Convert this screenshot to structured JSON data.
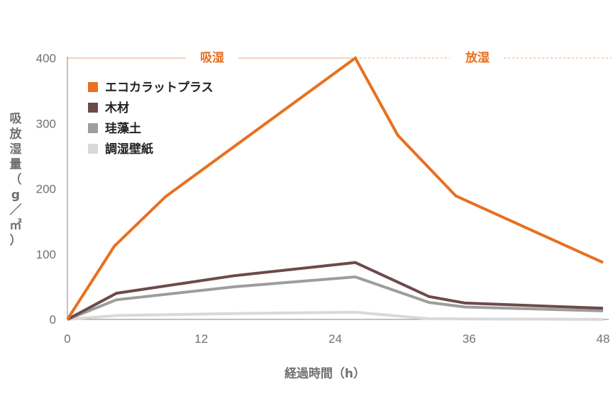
{
  "chart_data": {
    "type": "line",
    "xlabel": "経過時間（h）",
    "ylabel": [
      "吸",
      "放",
      "湿",
      "量",
      "（",
      "g",
      "／",
      "㎡",
      "）"
    ],
    "xlim": [
      0,
      48
    ],
    "ylim": [
      0,
      400
    ],
    "xticks": [
      0,
      12,
      24,
      36,
      48
    ],
    "yticks": [
      0,
      100,
      200,
      300,
      400
    ],
    "grid": false,
    "legend_position": "top-left",
    "phases": [
      {
        "label": "吸湿",
        "color": "#e8701f"
      },
      {
        "label": "放湿",
        "color": "#e8701f"
      }
    ],
    "series": [
      {
        "name": "エコカラットプラス",
        "color": "#e8701f",
        "points": [
          [
            0,
            0
          ],
          [
            4.2,
            112
          ],
          [
            8.8,
            188
          ],
          [
            25.8,
            400
          ],
          [
            29.6,
            282
          ],
          [
            34.8,
            189
          ],
          [
            48,
            87
          ]
        ]
      },
      {
        "name": "木材",
        "color": "#6d4a4a",
        "points": [
          [
            0,
            0
          ],
          [
            4.4,
            40
          ],
          [
            15,
            67
          ],
          [
            25.8,
            87
          ],
          [
            32.4,
            35
          ],
          [
            35.6,
            25
          ],
          [
            48,
            17
          ]
        ]
      },
      {
        "name": "珪藻土",
        "color": "#9d9d9d",
        "points": [
          [
            0,
            0
          ],
          [
            4.4,
            30
          ],
          [
            15,
            50
          ],
          [
            25.8,
            65
          ],
          [
            32.4,
            26
          ],
          [
            35.6,
            19
          ],
          [
            48,
            13
          ]
        ]
      },
      {
        "name": "調湿壁紙",
        "color": "#d9d9d9",
        "points": [
          [
            0,
            0
          ],
          [
            4.4,
            6
          ],
          [
            15,
            9
          ],
          [
            25.8,
            11
          ],
          [
            32.4,
            1
          ],
          [
            48,
            0
          ]
        ]
      }
    ]
  }
}
